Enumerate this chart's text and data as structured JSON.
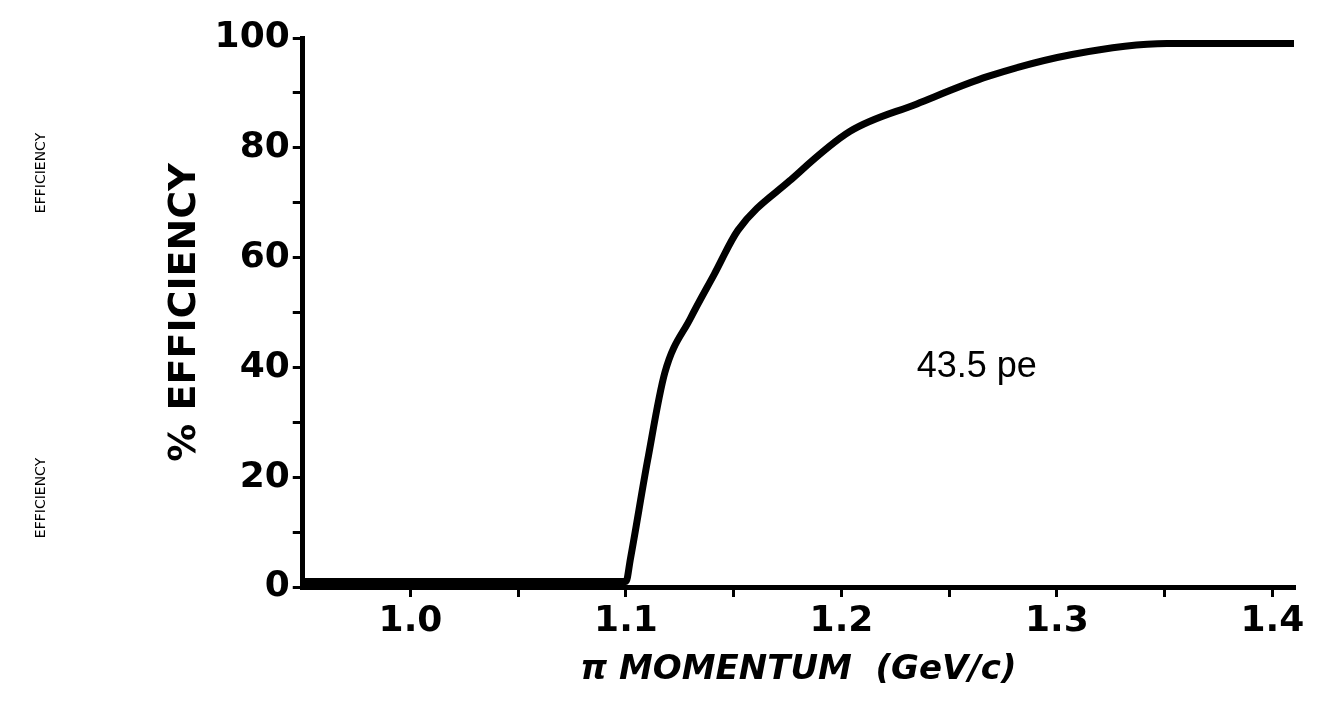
{
  "chart_data": {
    "type": "line",
    "xlabel": "π MOMENTUM  (GeV/c)",
    "ylabel": "% EFFICIENCY",
    "annotations": [
      "43.5 pe",
      "EFFICIENCY",
      "EFFICIENCY"
    ],
    "series": [
      {
        "color": "#000000",
        "x": [
          0.95,
          1.0,
          1.05,
          1.1,
          1.102,
          1.11,
          1.118,
          1.13,
          1.141,
          1.152,
          1.176,
          1.204,
          1.235,
          1.268,
          1.307,
          1.351,
          1.41
        ],
        "values": [
          1,
          1,
          1,
          1,
          5,
          23,
          39,
          49,
          57,
          65,
          74,
          83,
          88,
          93,
          97,
          99,
          99
        ]
      }
    ],
    "xlim": [
      0.95,
      1.41
    ],
    "xticks": [
      {
        "value": 1,
        "label": "1.0"
      },
      {
        "value": 1.05,
        "label": null
      },
      1.1,
      {
        "value": 1.15,
        "label": null
      },
      1.2,
      {
        "value": 1.25,
        "label": null
      },
      1.3,
      {
        "value": 1.35,
        "label": null
      },
      1.4
    ],
    "ylim": [
      0,
      100
    ],
    "yticks": [
      0,
      {
        "value": 10,
        "label": null
      },
      20,
      {
        "value": 30,
        "label": null
      },
      40,
      {
        "value": 50,
        "label": null
      },
      60,
      {
        "value": 70,
        "label": null
      },
      80,
      {
        "value": 90,
        "label": null
      },
      100
    ],
    "grid": false,
    "legend": false,
    "marker": "none",
    "line_style": "solid"
  }
}
